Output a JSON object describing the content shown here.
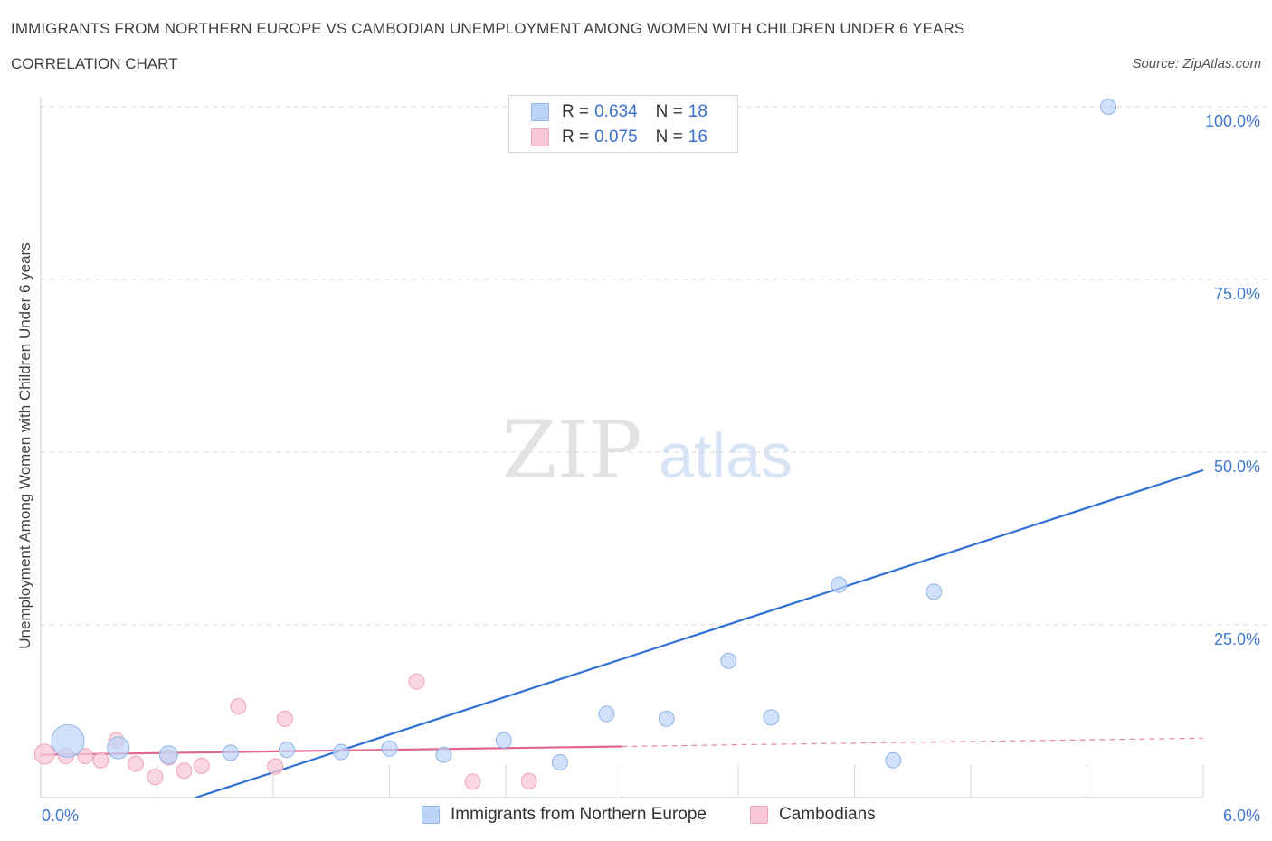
{
  "header": {
    "title": "IMMIGRANTS FROM NORTHERN EUROPE VS CAMBODIAN UNEMPLOYMENT AMONG WOMEN WITH CHILDREN UNDER 6 YEARS",
    "subtitle": "CORRELATION CHART",
    "source": "Source: ZipAtlas.com"
  },
  "watermark": {
    "zip": "ZIP",
    "atlas": "atlas"
  },
  "legend": {
    "series1": {
      "r_label": "R =",
      "r_value": "0.634",
      "n_label": "N =",
      "n_value": "18"
    },
    "series2": {
      "r_label": "R =",
      "r_value": "0.075",
      "n_label": "N =",
      "n_value": "16"
    }
  },
  "colors": {
    "blue_fill": "#bcd4f6",
    "blue_stroke": "#8fb4e8",
    "blue_line": "#2f6fd6",
    "pink_fill": "#f8c8d6",
    "pink_stroke": "#eea3ba",
    "pink_line": "#e0668f",
    "tick_label": "#3f78d0",
    "grid": "#d9d9d9"
  },
  "chart_data": {
    "type": "scatter",
    "title": "IMMIGRANTS FROM NORTHERN EUROPE VS CAMBODIAN UNEMPLOYMENT AMONG WOMEN WITH CHILDREN UNDER 6 YEARS",
    "xlabel": "",
    "ylabel": "Unemployment Among Women with Children Under 6 years",
    "xlim": [
      0,
      6
    ],
    "ylim": [
      0,
      100
    ],
    "x_ticks": [
      "0.0%",
      "6.0%"
    ],
    "y_ticks": [
      {
        "value": 25,
        "label": "25.0%"
      },
      {
        "value": 50,
        "label": "50.0%"
      },
      {
        "value": 75,
        "label": "75.0%"
      },
      {
        "value": 100,
        "label": "100.0%"
      }
    ],
    "grid": true,
    "legend_position": "bottom",
    "series": [
      {
        "name": "Immigrants from Northern Europe",
        "color": "#bcd4f6",
        "points": [
          {
            "x": 0.14,
            "y": 8.2,
            "size": 36
          },
          {
            "x": 0.4,
            "y": 7.2,
            "size": 24
          },
          {
            "x": 0.66,
            "y": 6.2,
            "size": 20
          },
          {
            "x": 0.98,
            "y": 6.5,
            "size": 17
          },
          {
            "x": 1.27,
            "y": 6.9,
            "size": 17
          },
          {
            "x": 1.55,
            "y": 6.6,
            "size": 17
          },
          {
            "x": 1.8,
            "y": 7.1,
            "size": 17
          },
          {
            "x": 2.08,
            "y": 6.2,
            "size": 17
          },
          {
            "x": 2.39,
            "y": 8.3,
            "size": 17
          },
          {
            "x": 2.68,
            "y": 5.1,
            "size": 17
          },
          {
            "x": 2.92,
            "y": 12.1,
            "size": 17
          },
          {
            "x": 3.23,
            "y": 11.4,
            "size": 17
          },
          {
            "x": 3.55,
            "y": 19.8,
            "size": 17
          },
          {
            "x": 3.77,
            "y": 11.6,
            "size": 17
          },
          {
            "x": 4.12,
            "y": 30.8,
            "size": 17
          },
          {
            "x": 4.4,
            "y": 5.4,
            "size": 17
          },
          {
            "x": 4.61,
            "y": 29.8,
            "size": 17
          },
          {
            "x": 5.51,
            "y": 100.0,
            "size": 17
          }
        ],
        "trend": {
          "x": [
            0.8,
            6.0
          ],
          "y": [
            0.0,
            47.4
          ]
        }
      },
      {
        "name": "Cambodians",
        "color": "#f8c8d6",
        "points": [
          {
            "x": 0.02,
            "y": 6.3,
            "size": 22
          },
          {
            "x": 0.13,
            "y": 6.0,
            "size": 17
          },
          {
            "x": 0.23,
            "y": 6.0,
            "size": 17
          },
          {
            "x": 0.31,
            "y": 5.4,
            "size": 17
          },
          {
            "x": 0.39,
            "y": 8.3,
            "size": 17
          },
          {
            "x": 0.49,
            "y": 4.9,
            "size": 17
          },
          {
            "x": 0.59,
            "y": 3.0,
            "size": 17
          },
          {
            "x": 0.66,
            "y": 5.8,
            "size": 17
          },
          {
            "x": 0.74,
            "y": 3.9,
            "size": 17
          },
          {
            "x": 0.83,
            "y": 4.6,
            "size": 17
          },
          {
            "x": 1.02,
            "y": 13.2,
            "size": 17
          },
          {
            "x": 1.21,
            "y": 4.5,
            "size": 17
          },
          {
            "x": 1.26,
            "y": 11.4,
            "size": 17
          },
          {
            "x": 1.94,
            "y": 16.8,
            "size": 17
          },
          {
            "x": 2.23,
            "y": 2.3,
            "size": 17
          },
          {
            "x": 2.52,
            "y": 2.4,
            "size": 17
          }
        ],
        "trend": {
          "x": [
            0.0,
            3.0
          ],
          "y": [
            6.2,
            7.4
          ]
        },
        "trend_extension": {
          "x": [
            3.0,
            6.0
          ],
          "y": [
            7.4,
            8.6
          ]
        }
      }
    ]
  }
}
